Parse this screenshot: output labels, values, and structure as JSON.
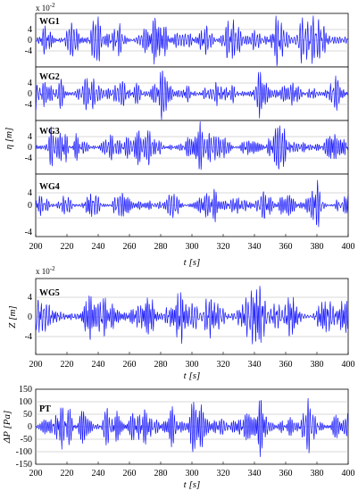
{
  "colors": {
    "signal": "#1a1aff",
    "axis": "#000000",
    "grid": "#b0b0b0"
  },
  "chart_data": [
    {
      "type": "line",
      "group": "free-surface",
      "series": [
        {
          "name": "WG1",
          "amplitude": 4,
          "seed": 11
        },
        {
          "name": "WG2",
          "amplitude": 4,
          "seed": 23
        },
        {
          "name": "WG3",
          "amplitude": 4,
          "seed": 37
        },
        {
          "name": "WG4",
          "amplitude": 4,
          "seed": 41
        }
      ],
      "xlim": [
        200,
        400
      ],
      "ylim": [
        -5,
        5
      ],
      "xticks": [
        "200",
        "220",
        "240",
        "260",
        "280",
        "300",
        "320",
        "340",
        "360",
        "380",
        "400"
      ],
      "yticks": [
        "4",
        "0",
        "-4"
      ],
      "ylabel": "η [m]",
      "xlabel": "t [s]",
      "scale_base": "x 10",
      "scale_exp": "-2",
      "grid": true
    },
    {
      "type": "line",
      "group": "body-motion",
      "series": [
        {
          "name": "WG5",
          "amplitude": 4,
          "seed": 59
        }
      ],
      "xlim": [
        200,
        400
      ],
      "ylim": [
        -6,
        6
      ],
      "xticks": [
        "200",
        "220",
        "240",
        "260",
        "280",
        "300",
        "320",
        "340",
        "360",
        "380",
        "400"
      ],
      "yticks": [
        "4",
        "0",
        "-4"
      ],
      "ylabel": "Z [m]",
      "xlabel": "t [s]",
      "scale_base": "x 10",
      "scale_exp": "-2",
      "grid": true
    },
    {
      "type": "line",
      "group": "pressure",
      "series": [
        {
          "name": "PT",
          "amplitude": 100,
          "seed": 73
        }
      ],
      "xlim": [
        200,
        400
      ],
      "ylim": [
        -150,
        150
      ],
      "xticks": [
        "200",
        "220",
        "240",
        "260",
        "280",
        "300",
        "320",
        "340",
        "360",
        "380",
        "400"
      ],
      "yticks": [
        "150",
        "100",
        "50",
        "0",
        "-50",
        "-100",
        "-150"
      ],
      "ylabel": "ΔP [Pa]",
      "xlabel": "t [s]",
      "grid": true
    }
  ]
}
